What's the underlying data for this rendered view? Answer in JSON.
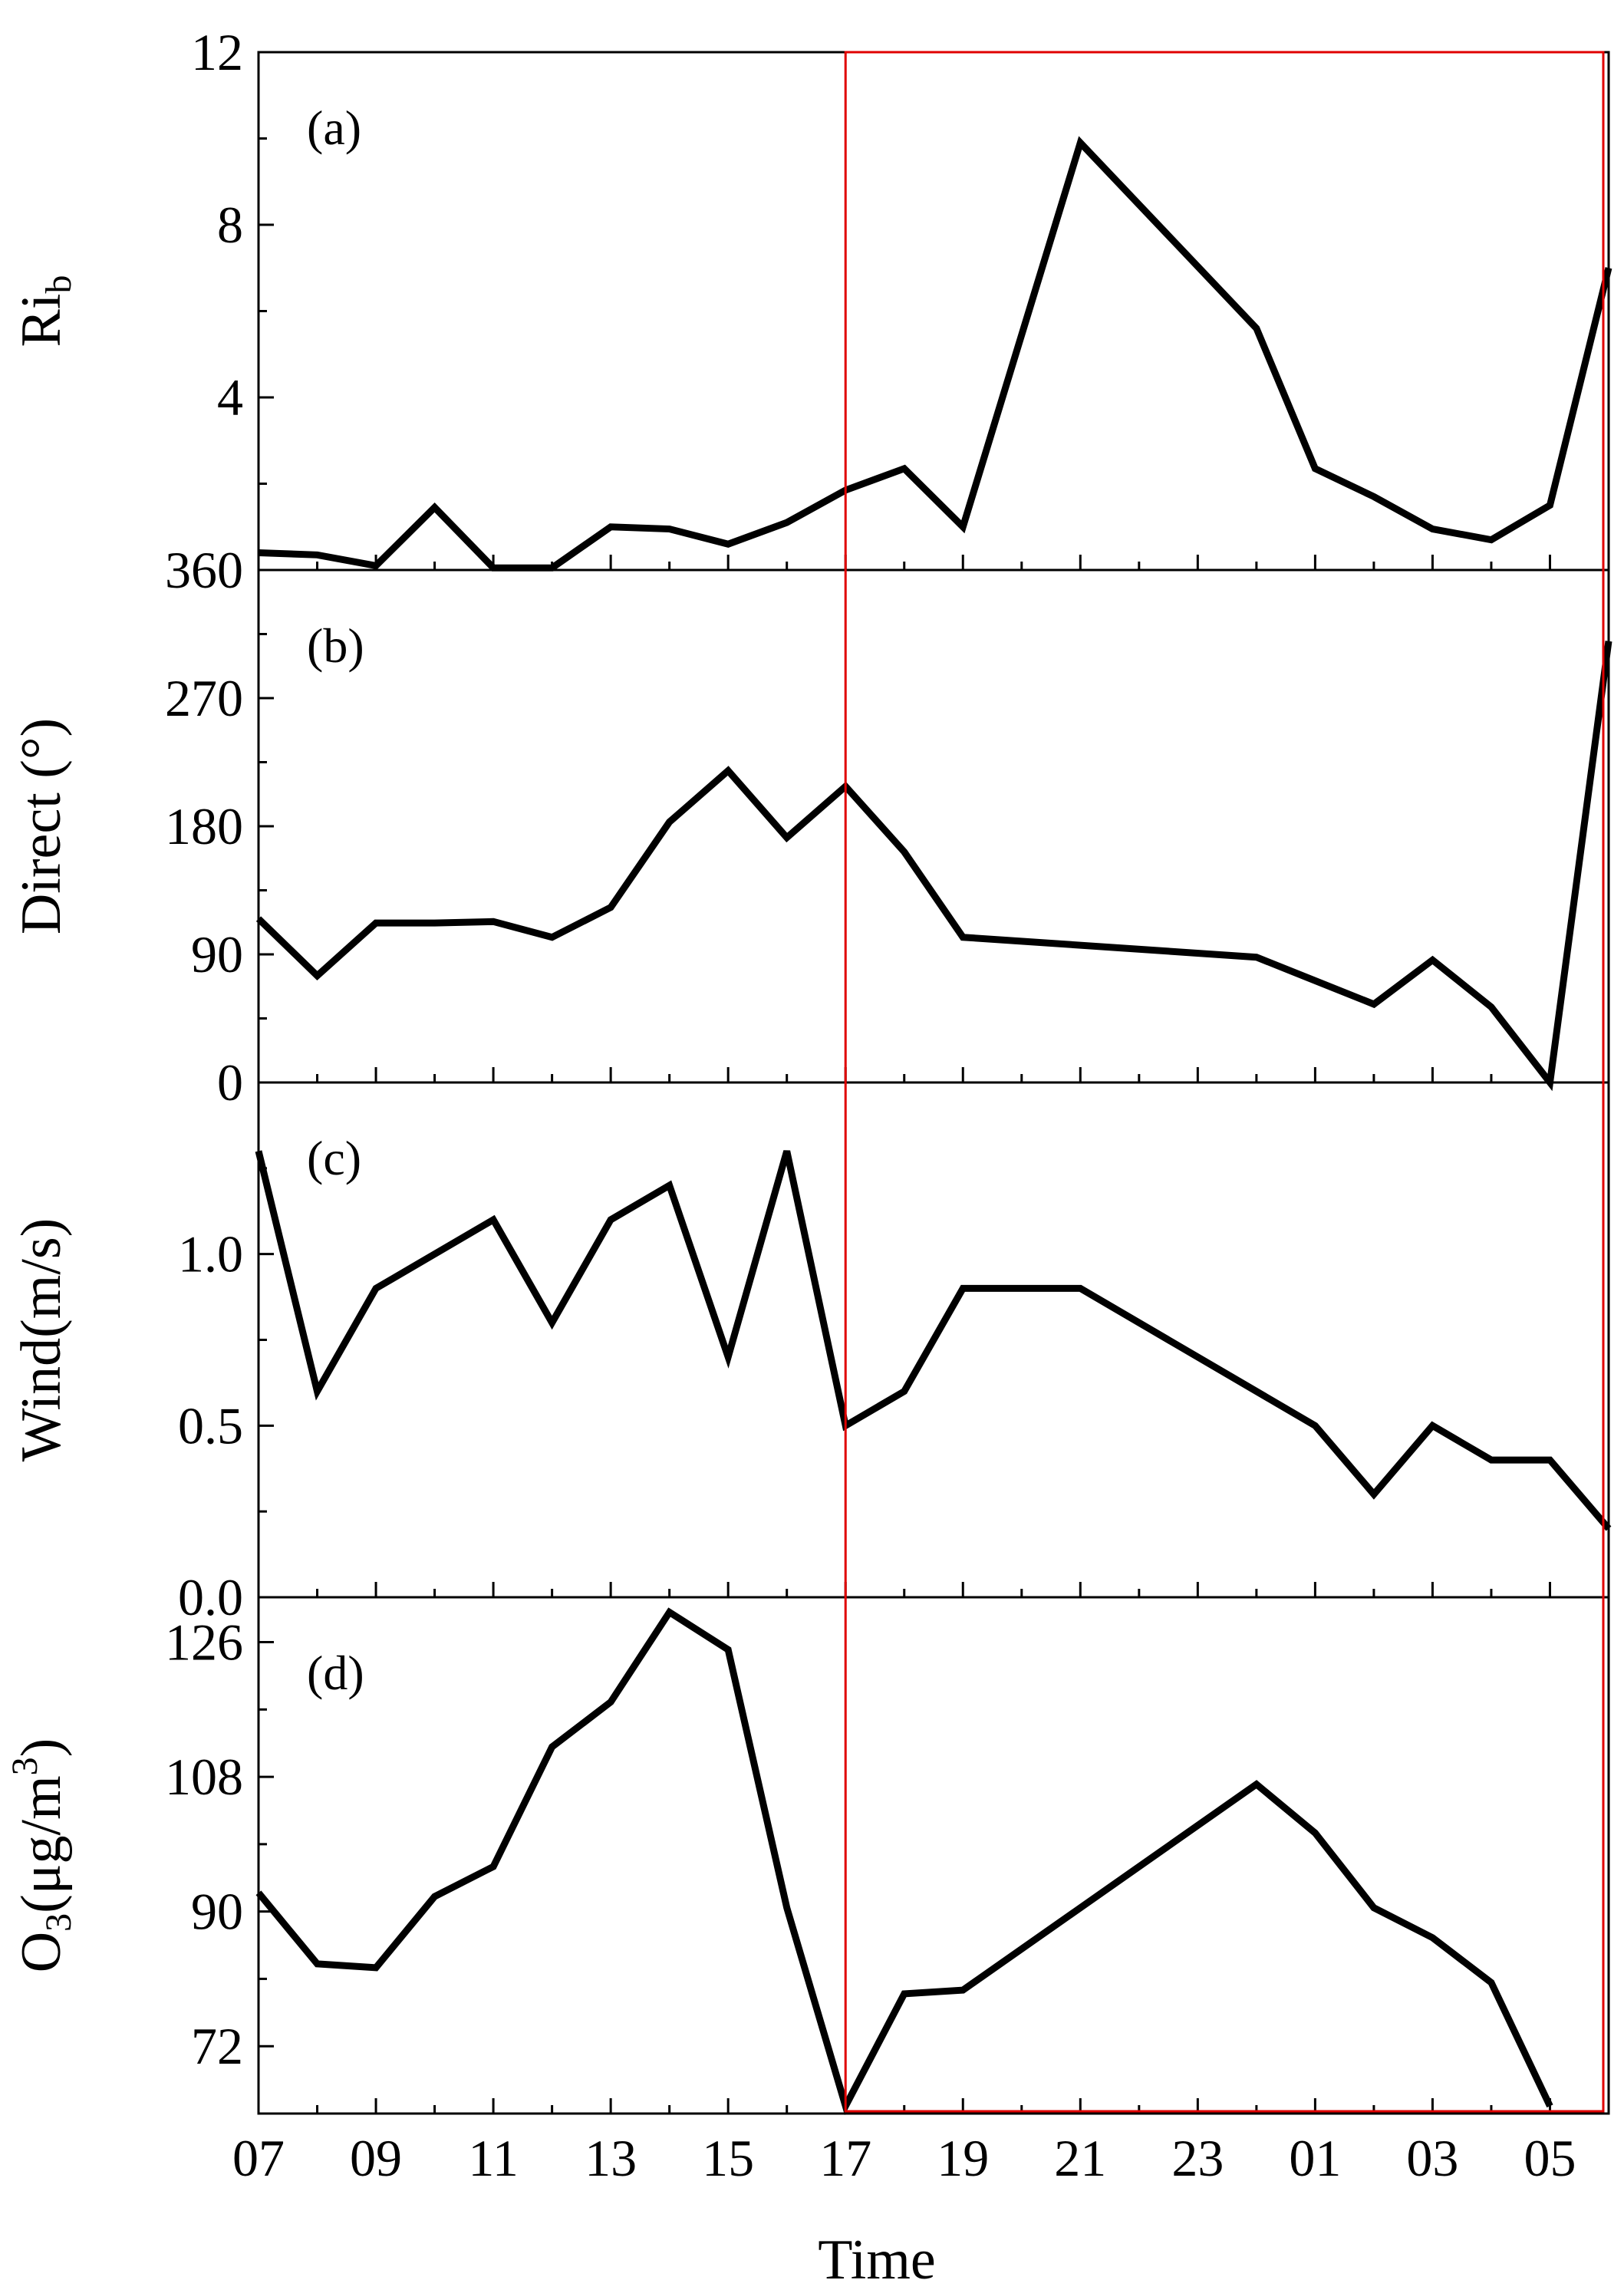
{
  "chart_data": {
    "type": "line",
    "xlabel": "Time",
    "x_tick_labels": [
      "07",
      "09",
      "11",
      "13",
      "15",
      "17",
      "19",
      "21",
      "23",
      "01",
      "03",
      "05"
    ],
    "highlight_box": {
      "from": "17",
      "to": "06",
      "color": "#e00000"
    },
    "panels": [
      {
        "label": "(a)",
        "ylabel": "Ri",
        "ylabel_sub": "b",
        "ylim": [
          0,
          12
        ],
        "yticks_major": [
          4,
          8,
          12
        ],
        "ytick_labels": [
          "4",
          "8",
          "12"
        ],
        "x": [
          "07",
          "08",
          "09",
          "10",
          "11",
          "12",
          "13",
          "14",
          "15",
          "16",
          "17",
          "18",
          "19",
          "21",
          "24",
          "01",
          "02",
          "03",
          "04",
          "05",
          "06"
        ],
        "values": [
          0.4,
          0.35,
          0.1,
          1.45,
          0.05,
          0.05,
          1.0,
          0.95,
          0.6,
          1.1,
          1.85,
          2.35,
          1.0,
          9.9,
          5.6,
          2.35,
          1.7,
          0.95,
          0.7,
          1.5,
          7.0
        ]
      },
      {
        "label": "(b)",
        "ylabel": "Direct (°)",
        "ylim": [
          0,
          360
        ],
        "yticks_major": [
          0,
          90,
          180,
          270,
          360
        ],
        "ytick_labels": [
          "0",
          "90",
          "180",
          "270",
          "360"
        ],
        "x": [
          "07",
          "08",
          "09",
          "10",
          "11",
          "12",
          "13",
          "14",
          "15",
          "16",
          "17",
          "18",
          "19",
          "24",
          "02",
          "03",
          "04",
          "05",
          "06"
        ],
        "values": [
          115,
          75,
          112,
          112,
          113,
          102,
          123,
          183,
          219,
          172,
          208,
          162,
          102,
          88,
          55,
          86,
          53,
          0,
          310
        ]
      },
      {
        "label": "(c)",
        "ylabel": "Wind(m/s)",
        "ylim": [
          0,
          1.5
        ],
        "yticks_major": [
          0.0,
          0.5,
          1.0
        ],
        "ytick_labels": [
          "0.0",
          "0.5",
          "1.0"
        ],
        "x": [
          "07",
          "08",
          "09",
          "11",
          "12",
          "13",
          "14",
          "15",
          "16",
          "17",
          "18",
          "19",
          "21",
          "01",
          "02",
          "03",
          "04",
          "05",
          "06"
        ],
        "values": [
          1.3,
          0.6,
          0.9,
          1.1,
          0.8,
          1.1,
          1.2,
          0.7,
          1.3,
          0.5,
          0.6,
          0.9,
          0.9,
          0.5,
          0.3,
          0.5,
          0.4,
          0.4,
          0.2
        ]
      },
      {
        "label": "(d)",
        "ylabel": "O",
        "ylabel_sub": "3",
        "ylabel_rest": "(μg/m",
        "ylabel_sup": "3",
        "ylabel_end": ")",
        "ylim": [
          63,
          132
        ],
        "yticks_major": [
          72,
          90,
          108,
          126
        ],
        "ytick_labels": [
          "72",
          "90",
          "108",
          "126"
        ],
        "x": [
          "07",
          "08",
          "09",
          "10",
          "11",
          "12",
          "13",
          "14",
          "15",
          "16",
          "17",
          "18",
          "19",
          "21",
          "24",
          "01",
          "02",
          "03",
          "04",
          "05"
        ],
        "values": [
          92.5,
          83,
          82.5,
          92,
          96,
          112,
          118,
          130,
          125,
          90.5,
          64,
          79,
          79.5,
          90.5,
          107,
          100.5,
          90.5,
          86.5,
          80.5,
          64
        ]
      }
    ]
  }
}
